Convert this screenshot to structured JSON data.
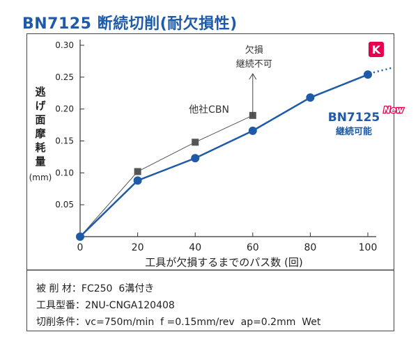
{
  "title": "BN7125 断続切削(耐欠損性)",
  "badge": "K",
  "ylabel_chars": [
    "逃",
    "げ",
    "面",
    "摩",
    "耗",
    "量"
  ],
  "yunit": "(mm)",
  "xlabel": "工具が欠損するまでのパス数 (回)",
  "annot_fracture": [
    "欠損",
    "継続不可"
  ],
  "new_tag": "New",
  "conditions": [
    "被 削 材：FC250  6溝付き",
    "工具型番：2NU-CNGA120408",
    "切削条件：vc=750m/min  f =0.15mm/rev  ap=0.2mm  Wet"
  ],
  "colors": {
    "bn": "#1e5aa8",
    "other": "#555555",
    "badge": "#e5004f",
    "title": "#1e5aa8"
  },
  "chart_data": {
    "type": "line",
    "xlabel": "工具が欠損するまでのパス数 (回)",
    "ylabel": "逃げ面摩耗量 (mm)",
    "xlim": [
      0,
      100
    ],
    "ylim": [
      0,
      0.3
    ],
    "xticks": [
      0,
      20,
      40,
      60,
      80,
      100
    ],
    "yticks": [
      0.05,
      0.1,
      0.15,
      0.2,
      0.25,
      0.3
    ],
    "ytick_labels": [
      "0.05",
      "0.10",
      "0.15",
      "0.20",
      "0.25",
      "0.30"
    ],
    "grid": false,
    "series": [
      {
        "name": "BN7125",
        "label_sub": "継続可能",
        "color": "#1e5aa8",
        "marker": "circle",
        "x": [
          0,
          20,
          40,
          60,
          80,
          100
        ],
        "y": [
          0,
          0.088,
          0.123,
          0.166,
          0.218,
          0.254
        ]
      },
      {
        "name": "他社CBN",
        "color": "#555555",
        "marker": "square",
        "x": [
          0,
          20,
          40,
          60
        ],
        "y": [
          0,
          0.102,
          0.148,
          0.19
        ]
      }
    ]
  }
}
